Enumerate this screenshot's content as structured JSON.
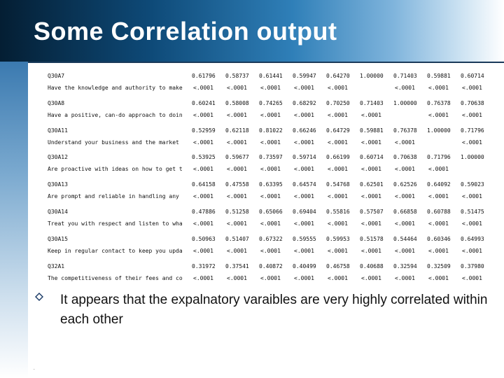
{
  "slide": {
    "title": "Some Correlation output",
    "note": "It appears that the expalnatory varaibles are very highly correlated within each other",
    "footer_dot": "."
  },
  "table": {
    "rows": [
      {
        "name": "Q30A7",
        "desc": "Have the knowledge and authority to make",
        "r": [
          "0.61796",
          "0.58737",
          "0.61441",
          "0.59947",
          "0.64270",
          "1.00000",
          "0.71403",
          "0.59881",
          "0.60714"
        ],
        "p": [
          "<.0001",
          "<.0001",
          "<.0001",
          "<.0001",
          "<.0001",
          "",
          "<.0001",
          "<.0001",
          "<.0001"
        ]
      },
      {
        "name": "Q30A8",
        "desc": "Have a positive, can-do approach to doin",
        "r": [
          "0.60241",
          "0.58008",
          "0.74265",
          "0.68292",
          "0.70250",
          "0.71403",
          "1.00000",
          "0.76378",
          "0.70638"
        ],
        "p": [
          "<.0001",
          "<.0001",
          "<.0001",
          "<.0001",
          "<.0001",
          "<.0001",
          "",
          "<.0001",
          "<.0001"
        ]
      },
      {
        "name": "Q30A11",
        "desc": "Understand your business and the market",
        "r": [
          "0.52959",
          "0.62118",
          "0.81022",
          "0.66246",
          "0.64729",
          "0.59881",
          "0.76378",
          "1.00000",
          "0.71796"
        ],
        "p": [
          "<.0001",
          "<.0001",
          "<.0001",
          "<.0001",
          "<.0001",
          "<.0001",
          "<.0001",
          "",
          "<.0001"
        ]
      },
      {
        "name": "Q30A12",
        "desc": "Are proactive with ideas on how to get t",
        "r": [
          "0.53925",
          "0.59677",
          "0.73597",
          "0.59714",
          "0.66199",
          "0.60714",
          "0.70638",
          "0.71796",
          "1.00000"
        ],
        "p": [
          "<.0001",
          "<.0001",
          "<.0001",
          "<.0001",
          "<.0001",
          "<.0001",
          "<.0001",
          "<.0001",
          ""
        ]
      },
      {
        "name": "Q30A13",
        "desc": "Are prompt and reliable in handling any",
        "r": [
          "0.64158",
          "0.47558",
          "0.63395",
          "0.64574",
          "0.54768",
          "0.62501",
          "0.62526",
          "0.64092",
          "0.59023"
        ],
        "p": [
          "<.0001",
          "<.0001",
          "<.0001",
          "<.0001",
          "<.0001",
          "<.0001",
          "<.0001",
          "<.0001",
          "<.0001"
        ]
      },
      {
        "name": "Q30A14",
        "desc": "Treat you with respect and listen to wha",
        "r": [
          "0.47886",
          "0.51258",
          "0.65066",
          "0.69404",
          "0.55816",
          "0.57507",
          "0.66858",
          "0.60788",
          "0.51475"
        ],
        "p": [
          "<.0001",
          "<.0001",
          "<.0001",
          "<.0001",
          "<.0001",
          "<.0001",
          "<.0001",
          "<.0001",
          "<.0001"
        ]
      },
      {
        "name": "Q30A15",
        "desc": "Keep in regular contact to keep you upda",
        "r": [
          "0.50963",
          "0.51407",
          "0.67322",
          "0.59555",
          "0.59953",
          "0.51578",
          "0.54464",
          "0.60346",
          "0.64993"
        ],
        "p": [
          "<.0001",
          "<.0001",
          "<.0001",
          "<.0001",
          "<.0001",
          "<.0001",
          "<.0001",
          "<.0001",
          "<.0001"
        ]
      },
      {
        "name": "Q32A1",
        "desc": "The competitiveness of their fees and co",
        "r": [
          "0.31972",
          "0.37541",
          "0.40872",
          "0.40499",
          "0.46758",
          "0.40688",
          "0.32594",
          "0.32509",
          "0.37980"
        ],
        "p": [
          "<.0001",
          "<.0001",
          "<.0001",
          "<.0001",
          "<.0001",
          "<.0001",
          "<.0001",
          "<.0001",
          "<.0001"
        ]
      }
    ]
  }
}
